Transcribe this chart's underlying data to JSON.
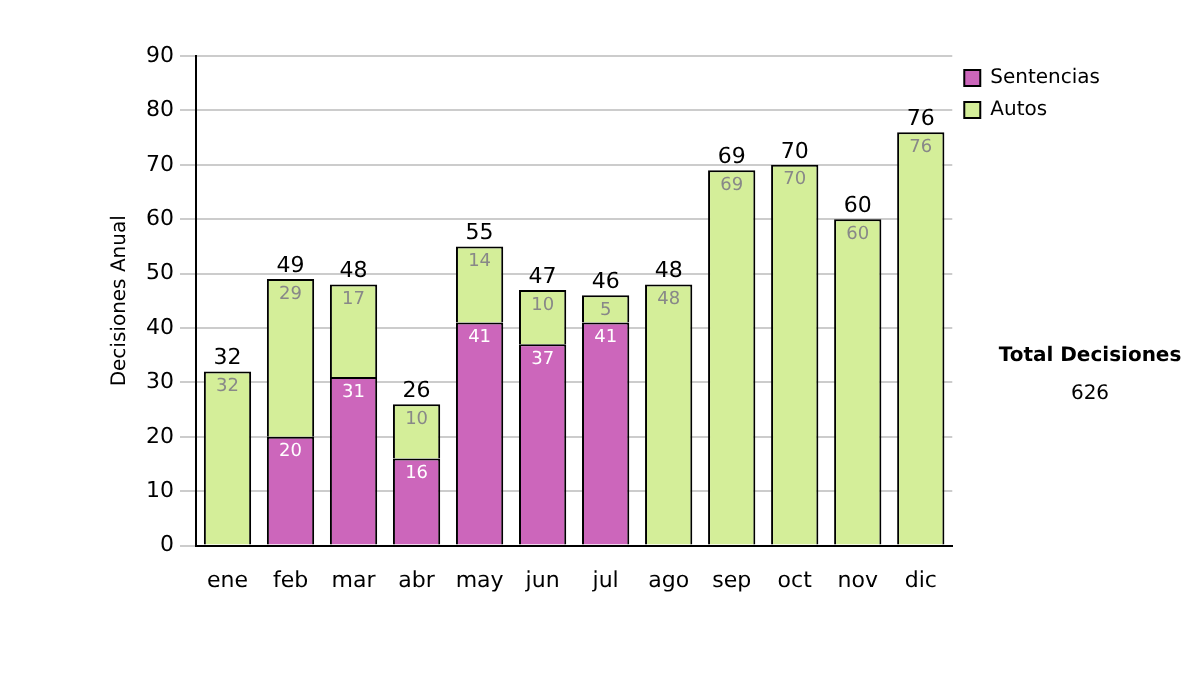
{
  "chart_data": {
    "type": "bar",
    "stacked": true,
    "ylabel": "Decisiones Anual",
    "categories": [
      "ene",
      "feb",
      "mar",
      "abr",
      "may",
      "jun",
      "jul",
      "ago",
      "sep",
      "oct",
      "nov",
      "dic"
    ],
    "series": [
      {
        "name": "Sentencias",
        "color": "#cc66bb",
        "values": [
          0,
          20,
          31,
          16,
          41,
          37,
          41,
          0,
          0,
          0,
          0,
          0
        ],
        "value_labels": [
          null,
          "20",
          "31",
          "16",
          "41",
          "37",
          "41",
          null,
          null,
          null,
          null,
          null
        ]
      },
      {
        "name": "Autos",
        "color": "#d4ee99",
        "values": [
          32,
          29,
          17,
          10,
          14,
          10,
          5,
          48,
          69,
          70,
          60,
          76
        ],
        "value_labels": [
          "32",
          "29",
          "17",
          "10",
          "14",
          "10",
          "5",
          "48",
          "69",
          "70",
          "60",
          "76"
        ]
      }
    ],
    "totals": [
      "32",
      "49",
      "48",
      "26",
      "55",
      "47",
      "46",
      "48",
      "69",
      "70",
      "60",
      "76"
    ],
    "ylim": [
      0,
      90
    ],
    "yticks": [
      0,
      10,
      20,
      30,
      40,
      50,
      60,
      70,
      80,
      90
    ],
    "grid": "y",
    "legend": "right",
    "annotations": [
      "Total Decisiones",
      "626"
    ]
  }
}
